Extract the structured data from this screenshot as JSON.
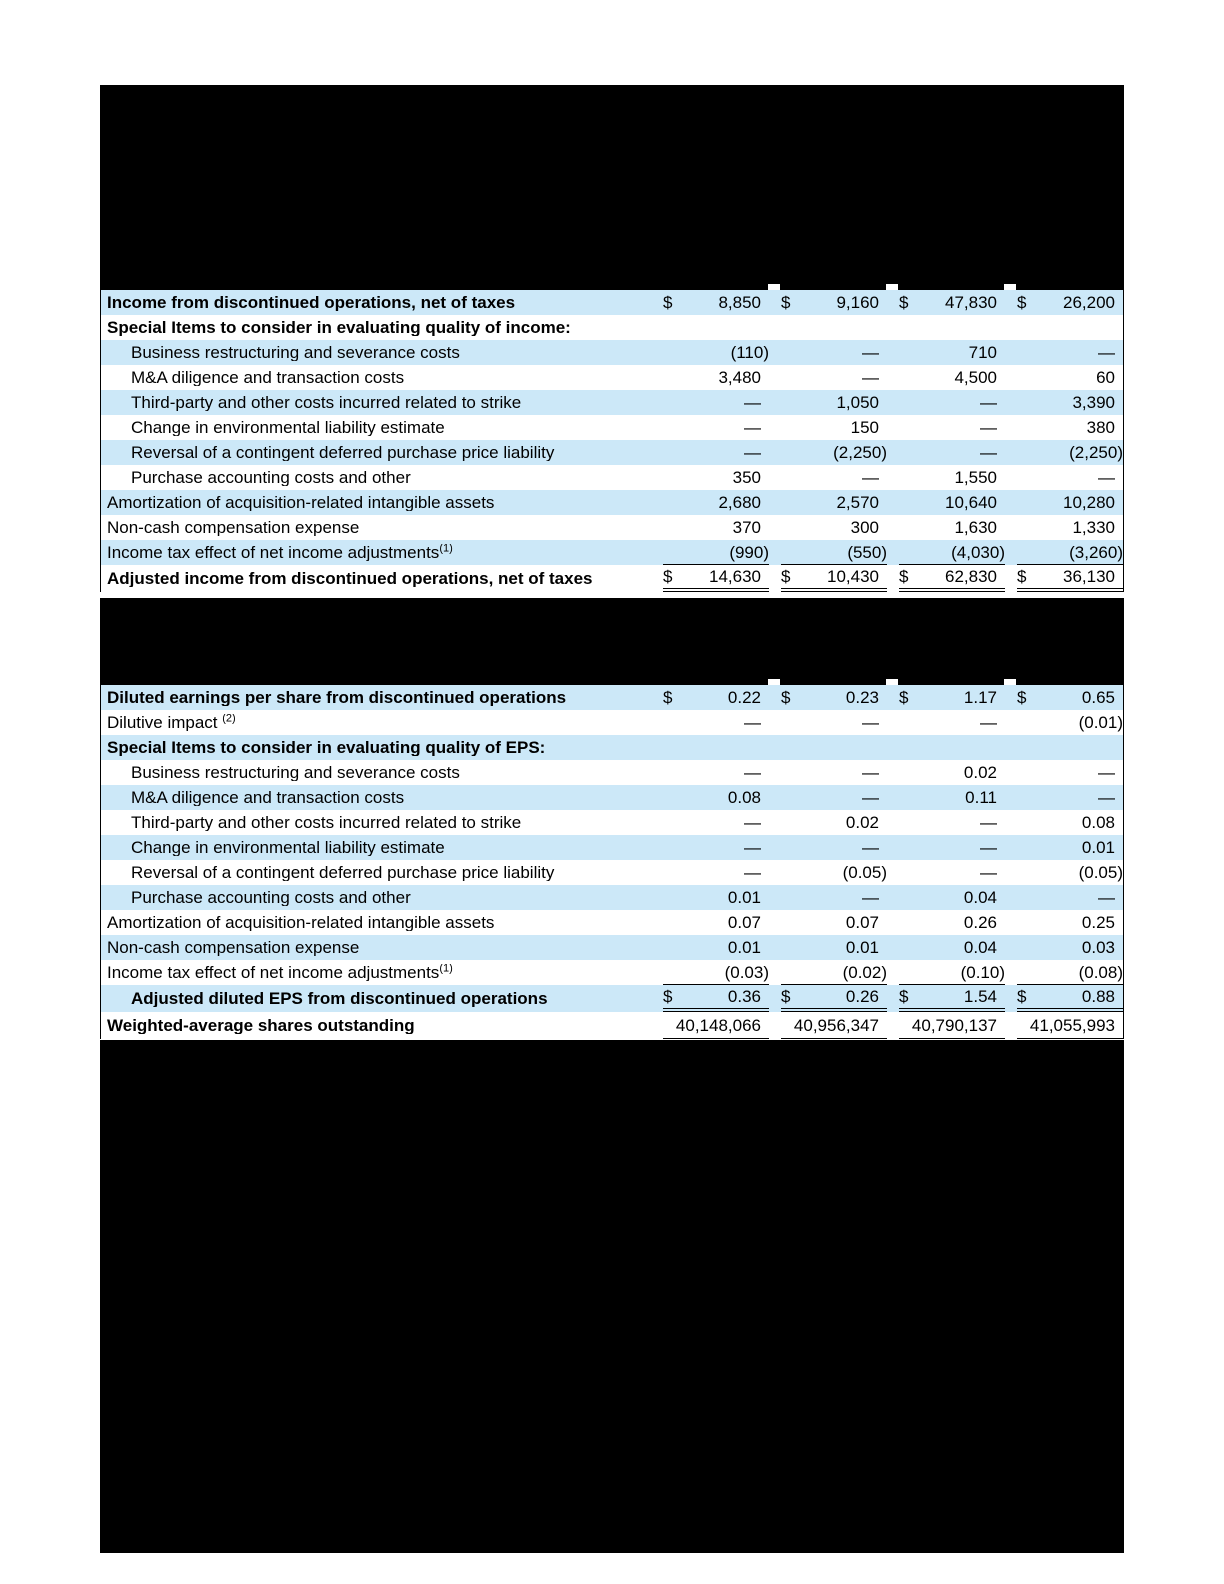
{
  "page": {
    "background": "#ffffff",
    "redaction_color": "#000000",
    "stripe_color": "#cce8f8",
    "text_color": "#000000",
    "currency_symbol": "$"
  },
  "income_table": {
    "rows": [
      {
        "label": "Income from discontinued operations, net of taxes",
        "bold": true,
        "indent": false,
        "shaded": true,
        "dollar": true,
        "border": "none",
        "tall": false,
        "values": [
          "8,850",
          "9,160",
          "47,830",
          "26,200"
        ]
      },
      {
        "label": "Special Items to consider in evaluating quality of income:",
        "bold": true,
        "indent": false,
        "shaded": false,
        "dollar": false,
        "border": "none",
        "tall": false,
        "values": null
      },
      {
        "label": "Business restructuring and severance costs",
        "bold": false,
        "indent": true,
        "shaded": true,
        "dollar": false,
        "border": "none",
        "tall": false,
        "values": [
          "(110)",
          "—",
          "710",
          "—"
        ]
      },
      {
        "label": "M&A diligence and transaction costs",
        "bold": false,
        "indent": true,
        "shaded": false,
        "dollar": false,
        "border": "none",
        "tall": false,
        "values": [
          "3,480",
          "—",
          "4,500",
          "60"
        ]
      },
      {
        "label": "Third-party and other costs incurred related to strike",
        "bold": false,
        "indent": true,
        "shaded": true,
        "dollar": false,
        "border": "none",
        "tall": false,
        "values": [
          "—",
          "1,050",
          "—",
          "3,390"
        ]
      },
      {
        "label": "Change in environmental liability estimate",
        "bold": false,
        "indent": true,
        "shaded": false,
        "dollar": false,
        "border": "none",
        "tall": false,
        "values": [
          "—",
          "150",
          "—",
          "380"
        ]
      },
      {
        "label": "Reversal of a contingent deferred purchase price liability",
        "bold": false,
        "indent": true,
        "shaded": true,
        "dollar": false,
        "border": "none",
        "tall": false,
        "values": [
          "—",
          "(2,250)",
          "—",
          "(2,250)"
        ]
      },
      {
        "label": "Purchase accounting costs and other",
        "bold": false,
        "indent": true,
        "shaded": false,
        "dollar": false,
        "border": "none",
        "tall": false,
        "values": [
          "350",
          "—",
          "1,550",
          "—"
        ]
      },
      {
        "label": "Amortization of acquisition-related intangible assets",
        "bold": false,
        "indent": false,
        "shaded": true,
        "dollar": false,
        "border": "none",
        "tall": false,
        "values": [
          "2,680",
          "2,570",
          "10,640",
          "10,280"
        ]
      },
      {
        "label": "Non-cash compensation expense",
        "bold": false,
        "indent": false,
        "shaded": false,
        "dollar": false,
        "border": "none",
        "tall": false,
        "values": [
          "370",
          "300",
          "1,630",
          "1,330"
        ]
      },
      {
        "label": "Income tax effect of net income adjustments",
        "sup": "(1)",
        "bold": false,
        "indent": false,
        "shaded": true,
        "dollar": false,
        "border": "single",
        "tall": false,
        "values": [
          "(990)",
          "(550)",
          "(4,030)",
          "(3,260)"
        ]
      },
      {
        "label": "Adjusted income from discontinued operations, net of taxes",
        "bold": true,
        "indent": false,
        "shaded": false,
        "dollar": true,
        "border": "double",
        "tall": true,
        "values": [
          "14,630",
          "10,430",
          "62,830",
          "36,130"
        ]
      }
    ]
  },
  "eps_table": {
    "rows": [
      {
        "label": "Diluted earnings per share from discontinued operations",
        "bold": true,
        "indent": false,
        "shaded": true,
        "dollar": true,
        "border": "none",
        "tall": false,
        "values": [
          "0.22",
          "0.23",
          "1.17",
          "0.65"
        ]
      },
      {
        "label": "Dilutive impact ",
        "sup": "(2)",
        "bold": false,
        "indent": false,
        "shaded": false,
        "dollar": false,
        "border": "none",
        "tall": false,
        "values": [
          "—",
          "—",
          "—",
          "(0.01)"
        ]
      },
      {
        "label": "Special Items to consider in evaluating quality of EPS:",
        "bold": true,
        "indent": false,
        "shaded": true,
        "dollar": false,
        "border": "none",
        "tall": false,
        "values": null
      },
      {
        "label": "Business restructuring and severance costs",
        "bold": false,
        "indent": true,
        "shaded": false,
        "dollar": false,
        "border": "none",
        "tall": false,
        "values": [
          "—",
          "—",
          "0.02",
          "—"
        ]
      },
      {
        "label": "M&A diligence and transaction costs",
        "bold": false,
        "indent": true,
        "shaded": true,
        "dollar": false,
        "border": "none",
        "tall": false,
        "values": [
          "0.08",
          "—",
          "0.11",
          "—"
        ]
      },
      {
        "label": "Third-party and other costs incurred related to strike",
        "bold": false,
        "indent": true,
        "shaded": false,
        "dollar": false,
        "border": "none",
        "tall": false,
        "values": [
          "—",
          "0.02",
          "—",
          "0.08"
        ]
      },
      {
        "label": "Change in environmental liability estimate",
        "bold": false,
        "indent": true,
        "shaded": true,
        "dollar": false,
        "border": "none",
        "tall": false,
        "values": [
          "—",
          "—",
          "—",
          "0.01"
        ]
      },
      {
        "label": "Reversal of a contingent deferred purchase price liability",
        "bold": false,
        "indent": true,
        "shaded": false,
        "dollar": false,
        "border": "none",
        "tall": false,
        "values": [
          "—",
          "(0.05)",
          "—",
          "(0.05)"
        ]
      },
      {
        "label": "Purchase accounting costs and other",
        "bold": false,
        "indent": true,
        "shaded": true,
        "dollar": false,
        "border": "none",
        "tall": false,
        "values": [
          "0.01",
          "—",
          "0.04",
          "—"
        ]
      },
      {
        "label": "Amortization of acquisition-related intangible assets",
        "bold": false,
        "indent": false,
        "shaded": false,
        "dollar": false,
        "border": "none",
        "tall": false,
        "values": [
          "0.07",
          "0.07",
          "0.26",
          "0.25"
        ]
      },
      {
        "label": "Non-cash compensation expense",
        "bold": false,
        "indent": false,
        "shaded": true,
        "dollar": false,
        "border": "none",
        "tall": false,
        "values": [
          "0.01",
          "0.01",
          "0.04",
          "0.03"
        ]
      },
      {
        "label": "Income tax effect of net income adjustments",
        "sup": "(1)",
        "bold": false,
        "indent": false,
        "shaded": false,
        "dollar": false,
        "border": "single",
        "tall": false,
        "values": [
          "(0.03)",
          "(0.02)",
          "(0.10)",
          "(0.08)"
        ]
      },
      {
        "label": "Adjusted diluted EPS from discontinued operations",
        "bold": true,
        "indent": true,
        "shaded": true,
        "dollar": true,
        "border": "double",
        "tall": true,
        "values": [
          "0.36",
          "0.26",
          "1.54",
          "0.88"
        ]
      },
      {
        "label": "Weighted-average shares outstanding",
        "bold": true,
        "indent": false,
        "shaded": false,
        "dollar": false,
        "border": "single",
        "tall": true,
        "values": [
          "40,148,066",
          "40,956,347",
          "40,790,137",
          "41,055,993"
        ]
      }
    ]
  }
}
